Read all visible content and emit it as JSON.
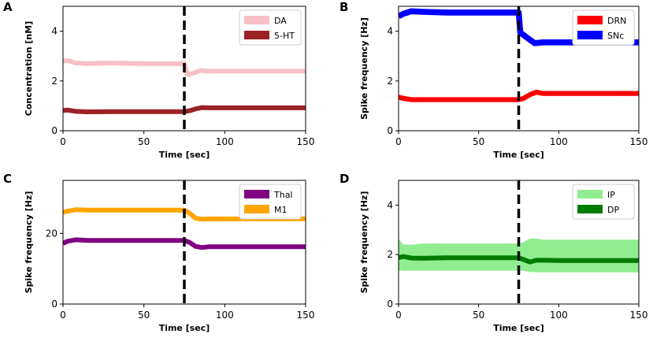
{
  "chart_data": [
    {
      "type": "line",
      "panel_label": "A",
      "xlabel": "Time [sec]",
      "ylabel": "Concentration [nM]",
      "xlim": [
        0,
        150
      ],
      "ylim": [
        0,
        5
      ],
      "xticks": [
        "0",
        "50",
        "100",
        "150"
      ],
      "yticks": [
        "0",
        "2",
        "4"
      ],
      "xtick_values": [
        0,
        50,
        100,
        150
      ],
      "ytick_values": [
        0,
        2,
        4
      ],
      "vline_x": 75,
      "legend": "top-right",
      "series": [
        {
          "name": "DA",
          "color": "#f7bfc6",
          "x": [
            0,
            3,
            8,
            15,
            30,
            50,
            70,
            75,
            77,
            80,
            85,
            90,
            100,
            120,
            150
          ],
          "y": [
            2.8,
            2.82,
            2.72,
            2.7,
            2.72,
            2.7,
            2.7,
            2.7,
            2.25,
            2.3,
            2.42,
            2.4,
            2.4,
            2.4,
            2.4
          ],
          "band": 0.07
        },
        {
          "name": "5-HT",
          "color": "#9b2226",
          "x": [
            0,
            3,
            8,
            15,
            30,
            50,
            70,
            75,
            78,
            82,
            86,
            90,
            100,
            120,
            150
          ],
          "y": [
            0.82,
            0.83,
            0.78,
            0.76,
            0.77,
            0.77,
            0.77,
            0.77,
            0.8,
            0.88,
            0.93,
            0.92,
            0.92,
            0.92,
            0.92
          ],
          "band": 0.07
        }
      ]
    },
    {
      "type": "line",
      "panel_label": "B",
      "xlabel": "Time [sec]",
      "ylabel": "Spike frequency [Hz]",
      "xlim": [
        0,
        150
      ],
      "ylim": [
        0,
        5
      ],
      "xticks": [
        "0",
        "50",
        "100",
        "150"
      ],
      "yticks": [
        "0",
        "2",
        "4"
      ],
      "xtick_values": [
        0,
        50,
        100,
        150
      ],
      "ytick_values": [
        0,
        2,
        4
      ],
      "vline_x": 75,
      "legend": "top-right",
      "series": [
        {
          "name": "DRN",
          "color": "#ff0000",
          "x": [
            0,
            3,
            8,
            15,
            30,
            50,
            70,
            75,
            78,
            82,
            86,
            90,
            100,
            120,
            150
          ],
          "y": [
            1.35,
            1.3,
            1.25,
            1.25,
            1.25,
            1.25,
            1.25,
            1.25,
            1.3,
            1.45,
            1.55,
            1.5,
            1.5,
            1.5,
            1.5
          ],
          "band": 0.1
        },
        {
          "name": "SNc",
          "color": "#0000ff",
          "x": [
            0,
            3,
            8,
            15,
            30,
            50,
            70,
            75,
            76,
            80,
            85,
            90,
            100,
            120,
            150
          ],
          "y": [
            4.6,
            4.7,
            4.8,
            4.78,
            4.75,
            4.75,
            4.75,
            4.75,
            3.95,
            3.75,
            3.52,
            3.55,
            3.55,
            3.55,
            3.55
          ],
          "band": 0.12
        }
      ]
    },
    {
      "type": "line",
      "panel_label": "C",
      "xlabel": "Time [sec]",
      "ylabel": "Spike frequency [Hz]",
      "xlim": [
        0,
        150
      ],
      "ylim": [
        0,
        35
      ],
      "xticks": [
        "0",
        "50",
        "100",
        "150"
      ],
      "yticks": [
        "0",
        "20"
      ],
      "xtick_values": [
        0,
        50,
        100,
        150
      ],
      "ytick_values": [
        0,
        20
      ],
      "vline_x": 75,
      "legend": "top-right",
      "series": [
        {
          "name": "Thal",
          "color": "#800080",
          "x": [
            0,
            3,
            8,
            15,
            30,
            50,
            70,
            75,
            78,
            82,
            86,
            90,
            100,
            120,
            150
          ],
          "y": [
            17.2,
            17.8,
            18.2,
            18.0,
            18.0,
            18.0,
            18.0,
            18.0,
            17.5,
            16.3,
            16.0,
            16.2,
            16.2,
            16.2,
            16.2
          ],
          "band": 0.5
        },
        {
          "name": "M1",
          "color": "#ffa500",
          "x": [
            0,
            3,
            8,
            15,
            30,
            50,
            70,
            75,
            78,
            82,
            86,
            90,
            100,
            120,
            150
          ],
          "y": [
            26.0,
            26.3,
            26.7,
            26.6,
            26.6,
            26.6,
            26.6,
            26.6,
            25.8,
            24.3,
            24.0,
            24.1,
            24.1,
            24.1,
            24.1
          ],
          "band": 0.5
        }
      ]
    },
    {
      "type": "line",
      "panel_label": "D",
      "xlabel": "Time [sec]",
      "ylabel": "Spike frequency [Hz]",
      "xlim": [
        0,
        150
      ],
      "ylim": [
        0,
        5
      ],
      "xticks": [
        "0",
        "50",
        "100",
        "150"
      ],
      "yticks": [
        "0",
        "2",
        "4"
      ],
      "xtick_values": [
        0,
        50,
        100,
        150
      ],
      "ytick_values": [
        0,
        2,
        4
      ],
      "vline_x": 75,
      "legend": "top-left",
      "series": [
        {
          "name": "IP",
          "color": "#90ee90",
          "x": [
            0,
            3,
            8,
            15,
            30,
            50,
            70,
            75,
            78,
            82,
            86,
            90,
            100,
            120,
            150
          ],
          "y": [
            1.9,
            1.9,
            1.9,
            1.9,
            1.9,
            1.9,
            1.9,
            1.9,
            1.9,
            1.95,
            1.9,
            1.95,
            1.95,
            1.95,
            1.95
          ],
          "lower": [
            1.35,
            1.35,
            1.35,
            1.35,
            1.35,
            1.35,
            1.35,
            1.35,
            1.35,
            1.3,
            1.28,
            1.28,
            1.28,
            1.28,
            1.28
          ],
          "upper": [
            2.65,
            2.4,
            2.4,
            2.45,
            2.45,
            2.45,
            2.45,
            2.45,
            2.5,
            2.65,
            2.65,
            2.6,
            2.6,
            2.6,
            2.6
          ],
          "band": 0
        },
        {
          "name": "DP",
          "color": "#007a00",
          "x": [
            0,
            3,
            8,
            15,
            30,
            50,
            70,
            75,
            78,
            82,
            86,
            90,
            100,
            120,
            150
          ],
          "y": [
            1.88,
            1.92,
            1.86,
            1.85,
            1.87,
            1.87,
            1.87,
            1.87,
            1.8,
            1.7,
            1.77,
            1.77,
            1.76,
            1.76,
            1.76
          ],
          "band": 0.09
        }
      ]
    }
  ]
}
